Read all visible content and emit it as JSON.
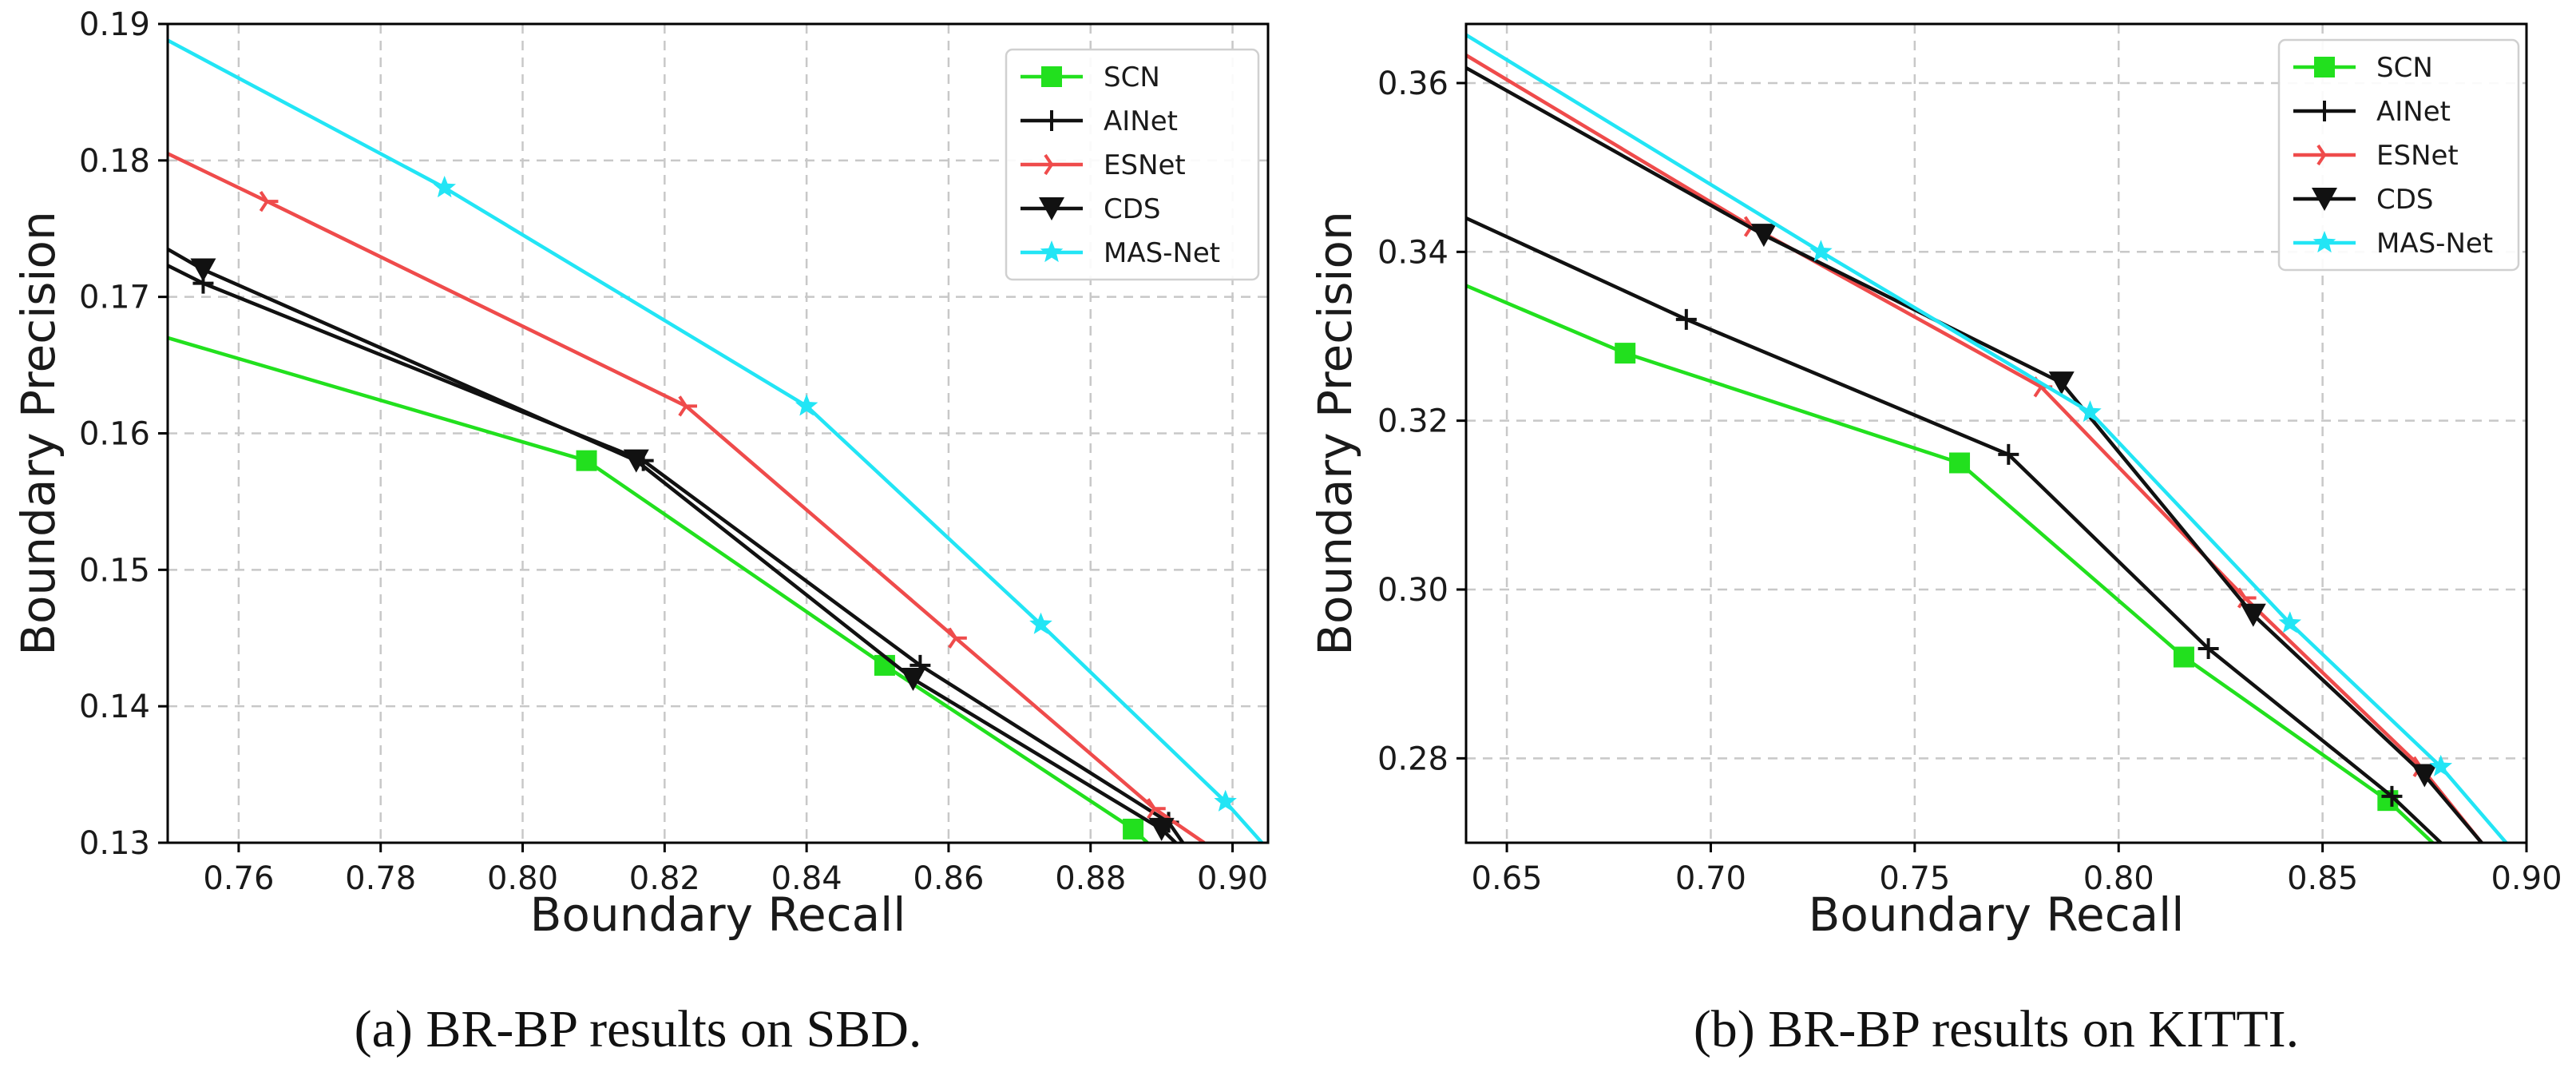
{
  "chart_data": [
    {
      "type": "line",
      "caption": "(a) BR-BP results on SBD.",
      "xlabel": "Boundary Recall",
      "ylabel": "Boundary Precision",
      "xlim": [
        0.75,
        0.905
      ],
      "ylim": [
        0.13,
        0.19
      ],
      "xticks": [
        "0.76",
        "0.78",
        "0.80",
        "0.82",
        "0.84",
        "0.86",
        "0.88",
        "0.90"
      ],
      "yticks": [
        "0.13",
        "0.14",
        "0.15",
        "0.16",
        "0.17",
        "0.18",
        "0.19"
      ],
      "grid": true,
      "legend": "top-right",
      "series": [
        {
          "name": "SCN",
          "color": "#22e01e",
          "marker": "square",
          "x": [
            0.75,
            0.809,
            0.851,
            0.886,
            0.888
          ],
          "y": [
            0.167,
            0.158,
            0.143,
            0.131,
            0.13
          ]
        },
        {
          "name": "AINet",
          "color": "#111111",
          "marker": "plus",
          "x": [
            0.75,
            0.755,
            0.817,
            0.856,
            0.891,
            0.893
          ],
          "y": [
            0.1723,
            0.171,
            0.158,
            0.143,
            0.1315,
            0.13
          ]
        },
        {
          "name": "ESNet",
          "color": "#ef4b4b",
          "marker": "tri",
          "x": [
            0.75,
            0.764,
            0.823,
            0.861,
            0.889,
            0.896
          ],
          "y": [
            0.1805,
            0.177,
            0.162,
            0.145,
            0.1325,
            0.13
          ]
        },
        {
          "name": "CDS",
          "color": "#111111",
          "marker": "triangle-down",
          "x": [
            0.75,
            0.755,
            0.816,
            0.855,
            0.89,
            0.892
          ],
          "y": [
            0.1735,
            0.172,
            0.158,
            0.142,
            0.131,
            0.13
          ]
        },
        {
          "name": "MAS-Net",
          "color": "#22e5f5",
          "marker": "star",
          "x": [
            0.75,
            0.789,
            0.84,
            0.873,
            0.899,
            0.905
          ],
          "y": [
            0.1888,
            0.178,
            0.162,
            0.146,
            0.133,
            0.1295
          ]
        }
      ]
    },
    {
      "type": "line",
      "caption": "(b) BR-BP results on KITTI.",
      "xlabel": "Boundary Recall",
      "ylabel": "Boundary Precision",
      "xlim": [
        0.64,
        0.9
      ],
      "ylim": [
        0.27,
        0.367
      ],
      "xticks": [
        "0.65",
        "0.70",
        "0.75",
        "0.80",
        "0.85",
        "0.90"
      ],
      "yticks": [
        "0.28",
        "0.30",
        "0.32",
        "0.34",
        "0.36"
      ],
      "grid": true,
      "legend": "top-right",
      "series": [
        {
          "name": "SCN",
          "color": "#22e01e",
          "marker": "square",
          "x": [
            0.64,
            0.679,
            0.761,
            0.816,
            0.866,
            0.877
          ],
          "y": [
            0.336,
            0.328,
            0.315,
            0.292,
            0.275,
            0.27
          ]
        },
        {
          "name": "AINet",
          "color": "#111111",
          "marker": "plus",
          "x": [
            0.64,
            0.694,
            0.773,
            0.822,
            0.867,
            0.879
          ],
          "y": [
            0.344,
            0.332,
            0.316,
            0.293,
            0.2755,
            0.27
          ]
        },
        {
          "name": "ESNet",
          "color": "#ef4b4b",
          "marker": "tri",
          "x": [
            0.64,
            0.71,
            0.781,
            0.831,
            0.874,
            0.889
          ],
          "y": [
            0.3633,
            0.343,
            0.324,
            0.299,
            0.279,
            0.27
          ]
        },
        {
          "name": "CDS",
          "color": "#111111",
          "marker": "triangle-down",
          "x": [
            0.64,
            0.713,
            0.786,
            0.833,
            0.875,
            0.889
          ],
          "y": [
            0.3618,
            0.342,
            0.3245,
            0.297,
            0.278,
            0.27
          ]
        },
        {
          "name": "MAS-Net",
          "color": "#22e5f5",
          "marker": "star",
          "x": [
            0.64,
            0.727,
            0.793,
            0.842,
            0.879,
            0.895
          ],
          "y": [
            0.3657,
            0.34,
            0.321,
            0.296,
            0.279,
            0.27
          ]
        }
      ]
    }
  ]
}
